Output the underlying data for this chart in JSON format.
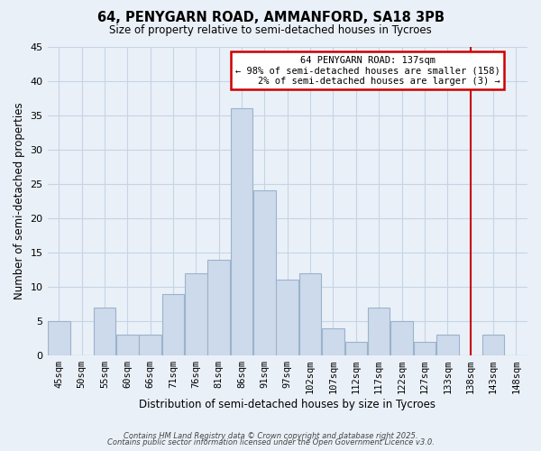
{
  "title": "64, PENYGARN ROAD, AMMANFORD, SA18 3PB",
  "subtitle": "Size of property relative to semi-detached houses in Tycroes",
  "xlabel": "Distribution of semi-detached houses by size in Tycroes",
  "ylabel": "Number of semi-detached properties",
  "categories": [
    "45sqm",
    "50sqm",
    "55sqm",
    "60sqm",
    "66sqm",
    "71sqm",
    "76sqm",
    "81sqm",
    "86sqm",
    "91sqm",
    "97sqm",
    "102sqm",
    "107sqm",
    "112sqm",
    "117sqm",
    "122sqm",
    "127sqm",
    "133sqm",
    "138sqm",
    "143sqm",
    "148sqm"
  ],
  "values": [
    5,
    0,
    7,
    3,
    3,
    9,
    12,
    14,
    36,
    24,
    11,
    12,
    4,
    2,
    7,
    5,
    2,
    3,
    0,
    3,
    0
  ],
  "bar_color": "#cddaeb",
  "bar_edge_color": "#9ab3cc",
  "ylim": [
    0,
    45
  ],
  "yticks": [
    0,
    5,
    10,
    15,
    20,
    25,
    30,
    35,
    40,
    45
  ],
  "property_line_index": 18,
  "property_line_label": "64 PENYGARN ROAD: 137sqm",
  "pct_smaller": "98% of semi-detached houses are smaller (158)",
  "pct_larger": "2% of semi-detached houses are larger (3)",
  "annotation_box_color": "#ffffff",
  "annotation_box_edge": "#cc0000",
  "property_line_color": "#cc0000",
  "grid_color": "#c5d5e5",
  "background_color": "#eaf0f8",
  "plot_bg_color": "#eaf0f8",
  "footer1": "Contains HM Land Registry data © Crown copyright and database right 2025.",
  "footer2": "Contains public sector information licensed under the Open Government Licence v3.0."
}
